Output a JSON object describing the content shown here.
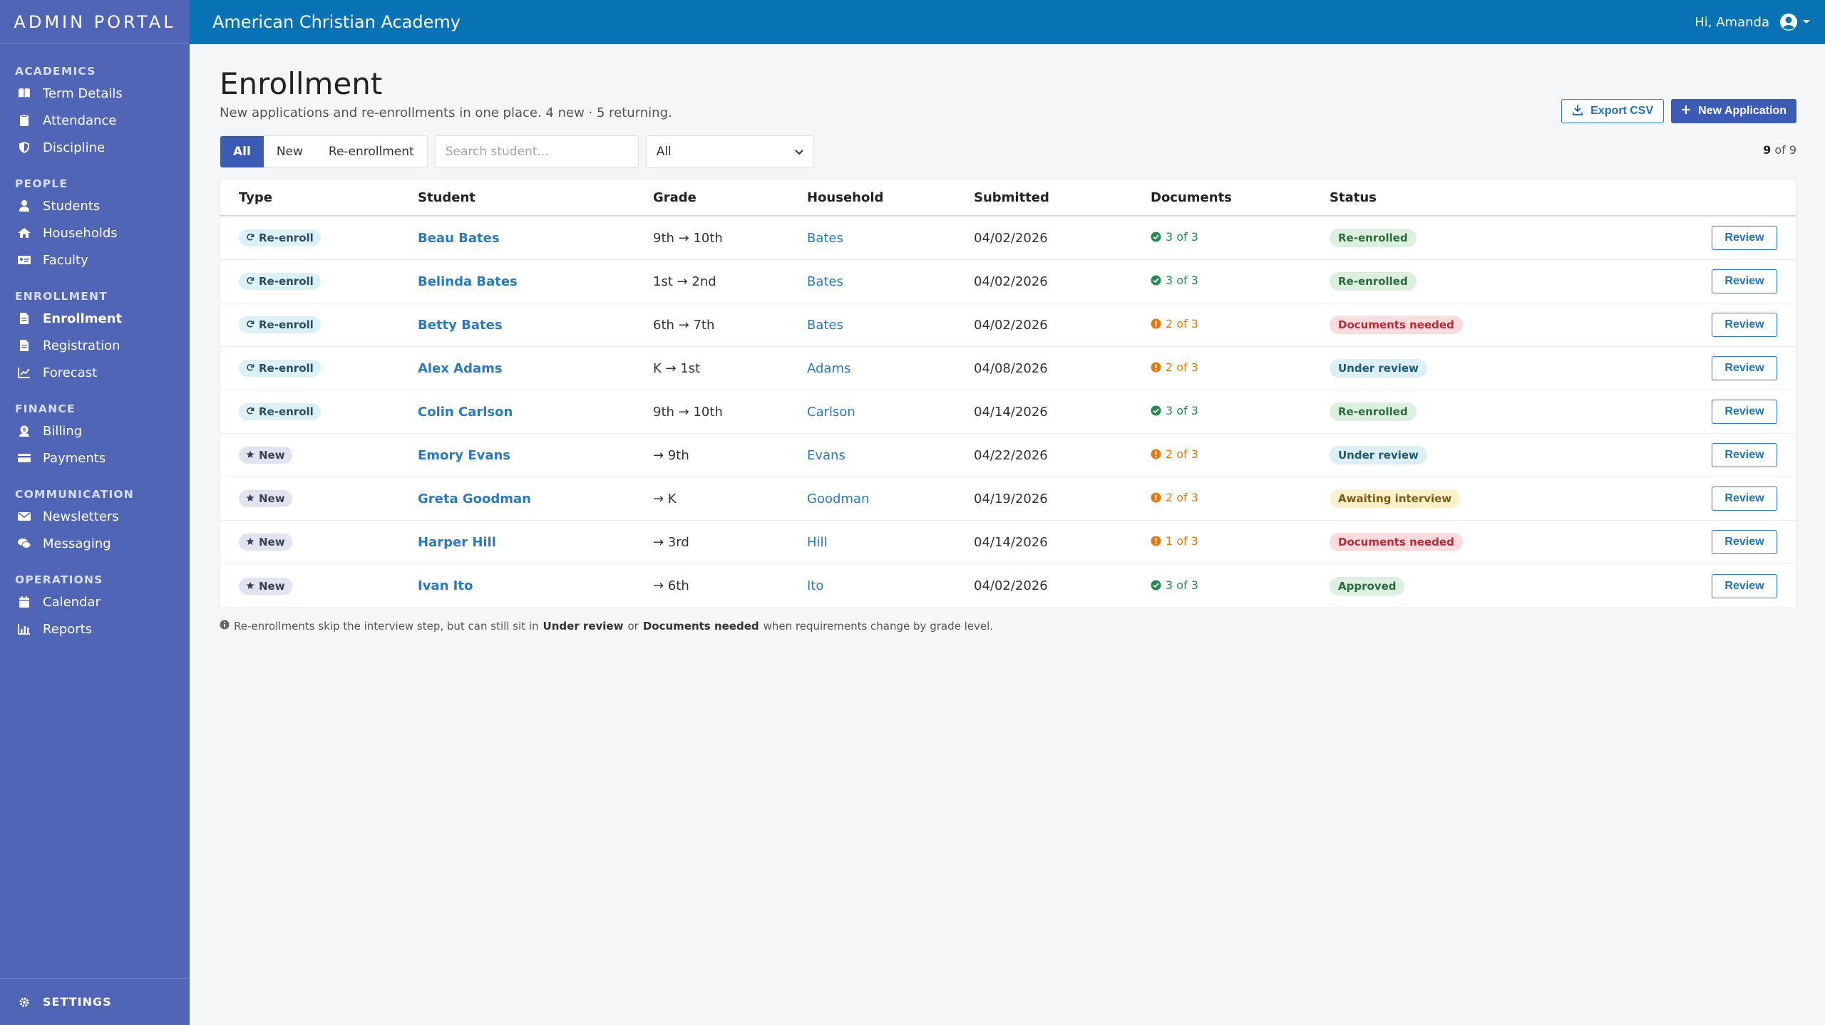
{
  "sidebar": {
    "brand": "ADMIN PORTAL",
    "sections": [
      {
        "title": "ACADEMICS",
        "items": [
          {
            "label": "Term Details",
            "icon": "book-icon"
          },
          {
            "label": "Attendance",
            "icon": "clipboard-icon"
          },
          {
            "label": "Discipline",
            "icon": "shield-icon"
          }
        ]
      },
      {
        "title": "PEOPLE",
        "items": [
          {
            "label": "Students",
            "icon": "user-icon"
          },
          {
            "label": "Households",
            "icon": "house-icon"
          },
          {
            "label": "Faculty",
            "icon": "id-card-icon"
          }
        ]
      },
      {
        "title": "ENROLLMENT",
        "items": [
          {
            "label": "Enrollment",
            "icon": "file-icon",
            "active": true
          },
          {
            "label": "Registration",
            "icon": "file-icon"
          },
          {
            "label": "Forecast",
            "icon": "chart-line-icon"
          }
        ]
      },
      {
        "title": "FINANCE",
        "items": [
          {
            "label": "Billing",
            "icon": "dollar-icon"
          },
          {
            "label": "Payments",
            "icon": "credit-card-icon"
          }
        ]
      },
      {
        "title": "COMMUNICATION",
        "items": [
          {
            "label": "Newsletters",
            "icon": "envelope-icon"
          },
          {
            "label": "Messaging",
            "icon": "chat-icon"
          }
        ]
      },
      {
        "title": "OPERATIONS",
        "items": [
          {
            "label": "Calendar",
            "icon": "calendar-icon"
          },
          {
            "label": "Reports",
            "icon": "bar-chart-icon"
          }
        ]
      }
    ],
    "settings_label": "SETTINGS"
  },
  "topbar": {
    "school_name": "American Christian Academy",
    "greeting": "Hi, Amanda"
  },
  "page": {
    "title": "Enrollment",
    "subtitle": "New applications and re-enrollments in one place. 4 new · 5 returning.",
    "export_label": "Export CSV",
    "new_label": "New Application"
  },
  "filters": {
    "tabs": [
      "All",
      "New",
      "Re-enrollment"
    ],
    "active_tab": "All",
    "search_placeholder": "Search student...",
    "select_value": "All",
    "count_shown": "9",
    "count_total": "of 9"
  },
  "table": {
    "headers": {
      "type": "Type",
      "student": "Student",
      "grade": "Grade",
      "household": "Household",
      "submitted": "Submitted",
      "documents": "Documents",
      "status": "Status"
    },
    "review_label": "Review",
    "rows": [
      {
        "type": "Re-enroll",
        "type_kind": "reenroll",
        "student": "Beau Bates",
        "grade": "9th → 10th",
        "household": "Bates",
        "submitted": "04/02/2026",
        "docs": "3 of 3",
        "docs_ok": true,
        "status": "Re-enrolled",
        "status_kind": "green"
      },
      {
        "type": "Re-enroll",
        "type_kind": "reenroll",
        "student": "Belinda Bates",
        "grade": "1st → 2nd",
        "household": "Bates",
        "submitted": "04/02/2026",
        "docs": "3 of 3",
        "docs_ok": true,
        "status": "Re-enrolled",
        "status_kind": "green"
      },
      {
        "type": "Re-enroll",
        "type_kind": "reenroll",
        "student": "Betty Bates",
        "grade": "6th → 7th",
        "household": "Bates",
        "submitted": "04/02/2026",
        "docs": "2 of 3",
        "docs_ok": false,
        "status": "Documents needed",
        "status_kind": "red"
      },
      {
        "type": "Re-enroll",
        "type_kind": "reenroll",
        "student": "Alex Adams",
        "grade": "K → 1st",
        "household": "Adams",
        "submitted": "04/08/2026",
        "docs": "2 of 3",
        "docs_ok": false,
        "status": "Under review",
        "status_kind": "blue"
      },
      {
        "type": "Re-enroll",
        "type_kind": "reenroll",
        "student": "Colin Carlson",
        "grade": "9th → 10th",
        "household": "Carlson",
        "submitted": "04/14/2026",
        "docs": "3 of 3",
        "docs_ok": true,
        "status": "Re-enrolled",
        "status_kind": "green"
      },
      {
        "type": "New",
        "type_kind": "new",
        "student": "Emory Evans",
        "grade": "→ 9th",
        "household": "Evans",
        "submitted": "04/22/2026",
        "docs": "2 of 3",
        "docs_ok": false,
        "status": "Under review",
        "status_kind": "blue"
      },
      {
        "type": "New",
        "type_kind": "new",
        "student": "Greta Goodman",
        "grade": "→ K",
        "household": "Goodman",
        "submitted": "04/19/2026",
        "docs": "2 of 3",
        "docs_ok": false,
        "status": "Awaiting interview",
        "status_kind": "yellow"
      },
      {
        "type": "New",
        "type_kind": "new",
        "student": "Harper Hill",
        "grade": "→ 3rd",
        "household": "Hill",
        "submitted": "04/14/2026",
        "docs": "1 of 3",
        "docs_ok": false,
        "status": "Documents needed",
        "status_kind": "red"
      },
      {
        "type": "New",
        "type_kind": "new",
        "student": "Ivan Ito",
        "grade": "→ 6th",
        "household": "Ito",
        "submitted": "04/02/2026",
        "docs": "3 of 3",
        "docs_ok": true,
        "status": "Approved",
        "status_kind": "green"
      }
    ]
  },
  "footnote": {
    "part1": "Re-enrollments skip the interview step, but can still sit in",
    "bold1": "Under review",
    "part2": "or",
    "bold2": "Documents needed",
    "part3": "when requirements change by grade level."
  },
  "colors": {
    "sidebar": "#5065b5",
    "topbar": "#0773b4",
    "primary": "#3b5bb5",
    "link": "#2a7ac0"
  }
}
